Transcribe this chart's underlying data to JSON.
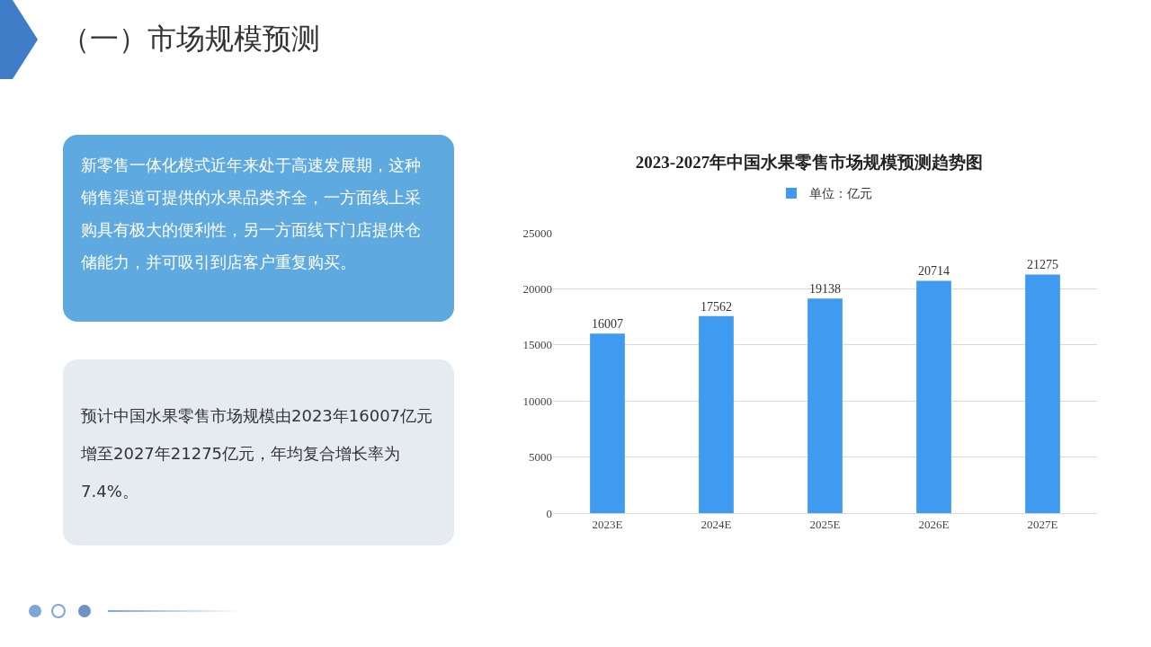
{
  "chart_data": {
    "type": "bar",
    "title": "2023-2027年中国水果零售市场规模预测趋势图",
    "categories": [
      "2023E",
      "2024E",
      "2025E",
      "2026E",
      "2027E"
    ],
    "series": [
      {
        "name": "单位：亿元",
        "color": "#3e9bef",
        "values": [
          16007,
          17562,
          19138,
          20714,
          21275
        ]
      }
    ],
    "ylim": [
      0,
      25000
    ],
    "yticks": [
      0,
      5000,
      10000,
      15000,
      20000,
      25000
    ],
    "grid": "y",
    "legend": "top",
    "data_labels": true,
    "annotations": [
      "（一）市场规模预测",
      "新零售一体化模式近年来处于高速发展期，这种销售渠道可提供的水果品类齐全，一方面线上采购具有极大的便利性，另一方面线下门店提供仓储能力，并可吸引到店客户重复购买。",
      "预计中国水果零售市场规模由2023年16007亿元增至2027年21275亿元，年均复合增长率为7.4%。"
    ]
  }
}
